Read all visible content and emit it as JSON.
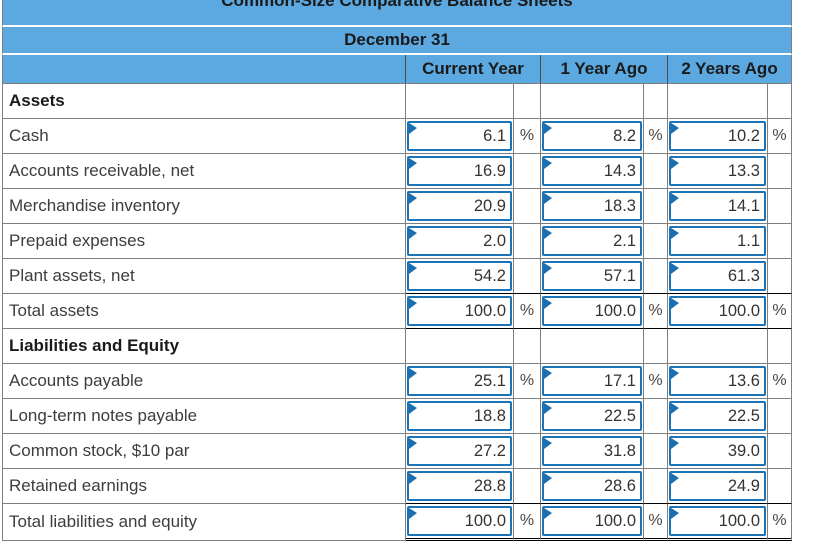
{
  "table": {
    "title": "Common-Size Comparative Balance Sheets",
    "subtitle": "December 31",
    "columns": [
      "Current Year",
      "1 Year Ago",
      "2 Years Ago"
    ],
    "percent_symbol": "%",
    "rows": [
      {
        "label": "Assets",
        "type": "section",
        "values": null,
        "show_percent": false
      },
      {
        "label": "Cash",
        "type": "item",
        "values": [
          "6.1",
          "8.2",
          "10.2"
        ],
        "show_percent": true
      },
      {
        "label": "Accounts receivable, net",
        "type": "item",
        "values": [
          "16.9",
          "14.3",
          "13.3"
        ],
        "show_percent": false
      },
      {
        "label": "Merchandise inventory",
        "type": "item",
        "values": [
          "20.9",
          "18.3",
          "14.1"
        ],
        "show_percent": false
      },
      {
        "label": "Prepaid expenses",
        "type": "item",
        "values": [
          "2.0",
          "2.1",
          "1.1"
        ],
        "show_percent": false
      },
      {
        "label": "Plant assets, net",
        "type": "item",
        "values": [
          "54.2",
          "57.1",
          "61.3"
        ],
        "show_percent": false,
        "rule_below": "single"
      },
      {
        "label": "Total assets",
        "type": "total",
        "values": [
          "100.0",
          "100.0",
          "100.0"
        ],
        "show_percent": true,
        "rule_below": "single"
      },
      {
        "label": "Liabilities and Equity",
        "type": "section",
        "values": null,
        "show_percent": false
      },
      {
        "label": "Accounts payable",
        "type": "item",
        "values": [
          "25.1",
          "17.1",
          "13.6"
        ],
        "show_percent": true
      },
      {
        "label": "Long-term notes payable",
        "type": "item",
        "values": [
          "18.8",
          "22.5",
          "22.5"
        ],
        "show_percent": false
      },
      {
        "label": "Common stock, $10 par",
        "type": "item",
        "values": [
          "27.2",
          "31.8",
          "39.0"
        ],
        "show_percent": false
      },
      {
        "label": "Retained earnings",
        "type": "item",
        "values": [
          "28.8",
          "28.6",
          "24.9"
        ],
        "show_percent": false,
        "rule_below": "single"
      },
      {
        "label": "Total liabilities and equity",
        "type": "total",
        "values": [
          "100.0",
          "100.0",
          "100.0"
        ],
        "show_percent": true,
        "rule_below": "double"
      }
    ],
    "colors": {
      "header_blue": "#5BA9E0",
      "input_border_blue": "#1C74B8",
      "answered_flag_blue": "#1B6FB0",
      "grid_gray": "#7f7f7f",
      "rule_black": "#000000"
    }
  }
}
